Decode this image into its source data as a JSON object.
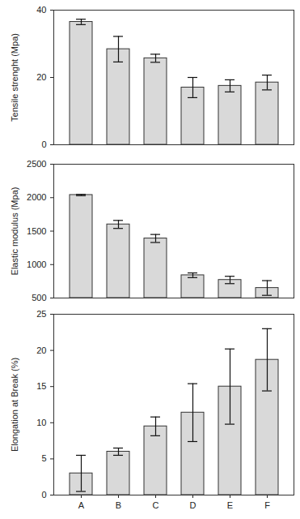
{
  "chart_data": [
    {
      "type": "bar",
      "y_label": "Tensile strenght (Mpa)",
      "categories": [
        "A",
        "B",
        "C",
        "D",
        "E",
        "F"
      ],
      "values": [
        36.5,
        28.4,
        25.7,
        17.0,
        17.5,
        18.5
      ],
      "errors": [
        0.8,
        3.8,
        1.2,
        3.0,
        1.8,
        2.2
      ],
      "color": "#d9d9d9",
      "ylim": [
        0,
        40
      ],
      "yticks": [
        0,
        20,
        40
      ],
      "grid": false,
      "tick_labels": "y"
    },
    {
      "type": "bar",
      "y_label": "Elastic modulus (Mpa)",
      "categories": [
        "A",
        "B",
        "C",
        "D",
        "E",
        "F"
      ],
      "values": [
        2040,
        1600,
        1390,
        840,
        770,
        650
      ],
      "errors": [
        10,
        60,
        60,
        35,
        55,
        110
      ],
      "color": "#d9d9d9",
      "ylim": [
        500,
        2500
      ],
      "yticks": [
        500,
        1000,
        1500,
        2000,
        2500
      ],
      "grid": false,
      "tick_labels": "y"
    },
    {
      "type": "bar",
      "y_label": "Elongation at Break (%)",
      "categories": [
        "A",
        "B",
        "C",
        "D",
        "E",
        "F"
      ],
      "values": [
        3.0,
        6.0,
        9.5,
        11.4,
        15.0,
        18.7
      ],
      "errors": [
        2.5,
        0.5,
        1.3,
        4.0,
        5.2,
        4.3
      ],
      "color": "#d9d9d9",
      "ylim": [
        0,
        25
      ],
      "yticks": [
        0,
        5,
        10,
        15,
        20,
        25
      ],
      "grid": false,
      "tick_labels": true
    }
  ]
}
